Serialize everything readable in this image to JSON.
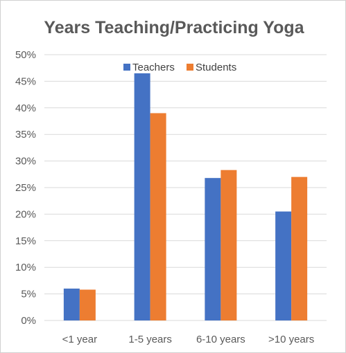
{
  "chart_data": {
    "type": "bar",
    "title": "Years Teaching/Practicing  Yoga",
    "xlabel": "",
    "ylabel": "",
    "categories": [
      "<1 year",
      "1-5 years",
      "6-10 years",
      ">10 years"
    ],
    "series": [
      {
        "name": "Teachers",
        "color": "#4472C4",
        "values": [
          0.06,
          0.465,
          0.268,
          0.205
        ]
      },
      {
        "name": "Students",
        "color": "#ED7D31",
        "values": [
          0.058,
          0.39,
          0.283,
          0.27
        ]
      }
    ],
    "ylim": [
      0,
      0.5
    ],
    "yticks": [
      {
        "value": 0,
        "label": "0%"
      },
      {
        "value": 0.05,
        "label": "5%"
      },
      {
        "value": 0.1,
        "label": "10%"
      },
      {
        "value": 0.15,
        "label": "15%"
      },
      {
        "value": 0.2,
        "label": "20%"
      },
      {
        "value": 0.25,
        "label": "25%"
      },
      {
        "value": 0.3,
        "label": "30%"
      },
      {
        "value": 0.35,
        "label": "35%"
      },
      {
        "value": 0.4,
        "label": "40%"
      },
      {
        "value": 0.45,
        "label": "45%"
      },
      {
        "value": 0.5,
        "label": "50%"
      }
    ],
    "grid": true,
    "legend_position": "top-center",
    "gridline_color": "#d9d9d9"
  }
}
